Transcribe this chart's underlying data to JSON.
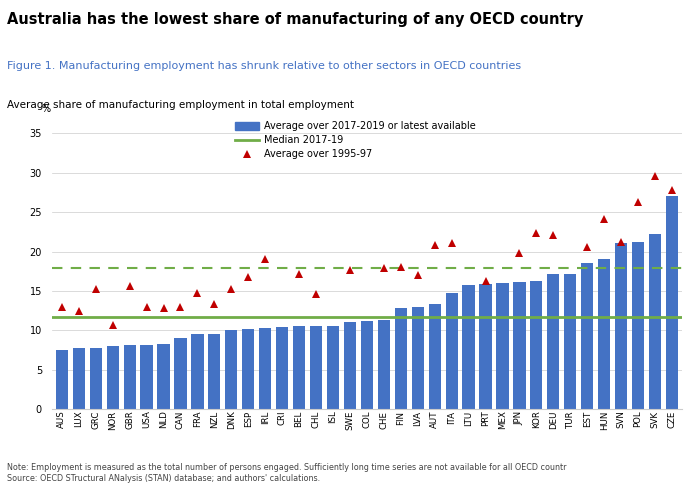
{
  "title": "Australia has the lowest share of manufacturing of any OECD country",
  "figure_title": "Figure 1. Manufacturing employment has shrunk relative to other sectors in OECD countries",
  "subtitle": "Average share of manufacturing employment in total employment",
  "ylabel": "%",
  "note": "Note: Employment is measured as the total number of persons engaged. Sufficiently long time series are not available for all OECD countr\nSource: OECD STructural ANalysis (STAN) database; and authors' calculations.",
  "countries": [
    "AUS",
    "LUX",
    "GRC",
    "NOR",
    "GBR",
    "USA",
    "NLD",
    "CAN",
    "FRA",
    "NZL",
    "DNK",
    "ESP",
    "IRL",
    "CRI",
    "BEL",
    "CHL",
    "ISL",
    "SWE",
    "COL",
    "CHE",
    "FIN",
    "LVA",
    "AUT",
    "ITA",
    "LTU",
    "PRT",
    "MEX",
    "JPN",
    "KOR",
    "DEU",
    "TUR",
    "EST",
    "HUN",
    "SVN",
    "POL",
    "SVK",
    "CZE"
  ],
  "bar_values": [
    7.5,
    7.7,
    7.8,
    8.0,
    8.1,
    8.2,
    8.3,
    9.0,
    9.5,
    9.6,
    10.0,
    10.2,
    10.3,
    10.4,
    10.5,
    10.5,
    10.6,
    11.0,
    11.2,
    11.3,
    12.9,
    13.0,
    13.3,
    14.7,
    15.7,
    15.9,
    16.0,
    16.1,
    16.2,
    17.1,
    17.2,
    18.5,
    19.1,
    21.1,
    21.2,
    22.2,
    27.0
  ],
  "triangle_values": [
    13.0,
    12.5,
    15.2,
    10.7,
    15.6,
    13.0,
    12.9,
    13.0,
    14.8,
    13.4,
    15.2,
    16.8,
    19.0,
    null,
    17.2,
    14.6,
    null,
    17.7,
    null,
    17.9,
    18.0,
    17.0,
    20.8,
    21.1,
    null,
    16.3,
    null,
    19.8,
    22.4,
    22.1,
    null,
    20.6,
    24.1,
    21.2,
    26.3,
    29.6,
    27.8
  ],
  "median_2017_19": 11.7,
  "median_1995_97_dashed": 17.9,
  "bar_color": "#4472C4",
  "triangle_color": "#C00000",
  "median_color": "#70AD47",
  "ylim": [
    0,
    37
  ],
  "yticks": [
    0,
    5,
    10,
    15,
    20,
    25,
    30,
    35
  ],
  "title_fontsize": 10.5,
  "figure_title_color": "#4472C4",
  "legend_labels": [
    "Average over 2017-2019 or latest available",
    "Median 2017-19",
    "Average over 1995-97"
  ]
}
